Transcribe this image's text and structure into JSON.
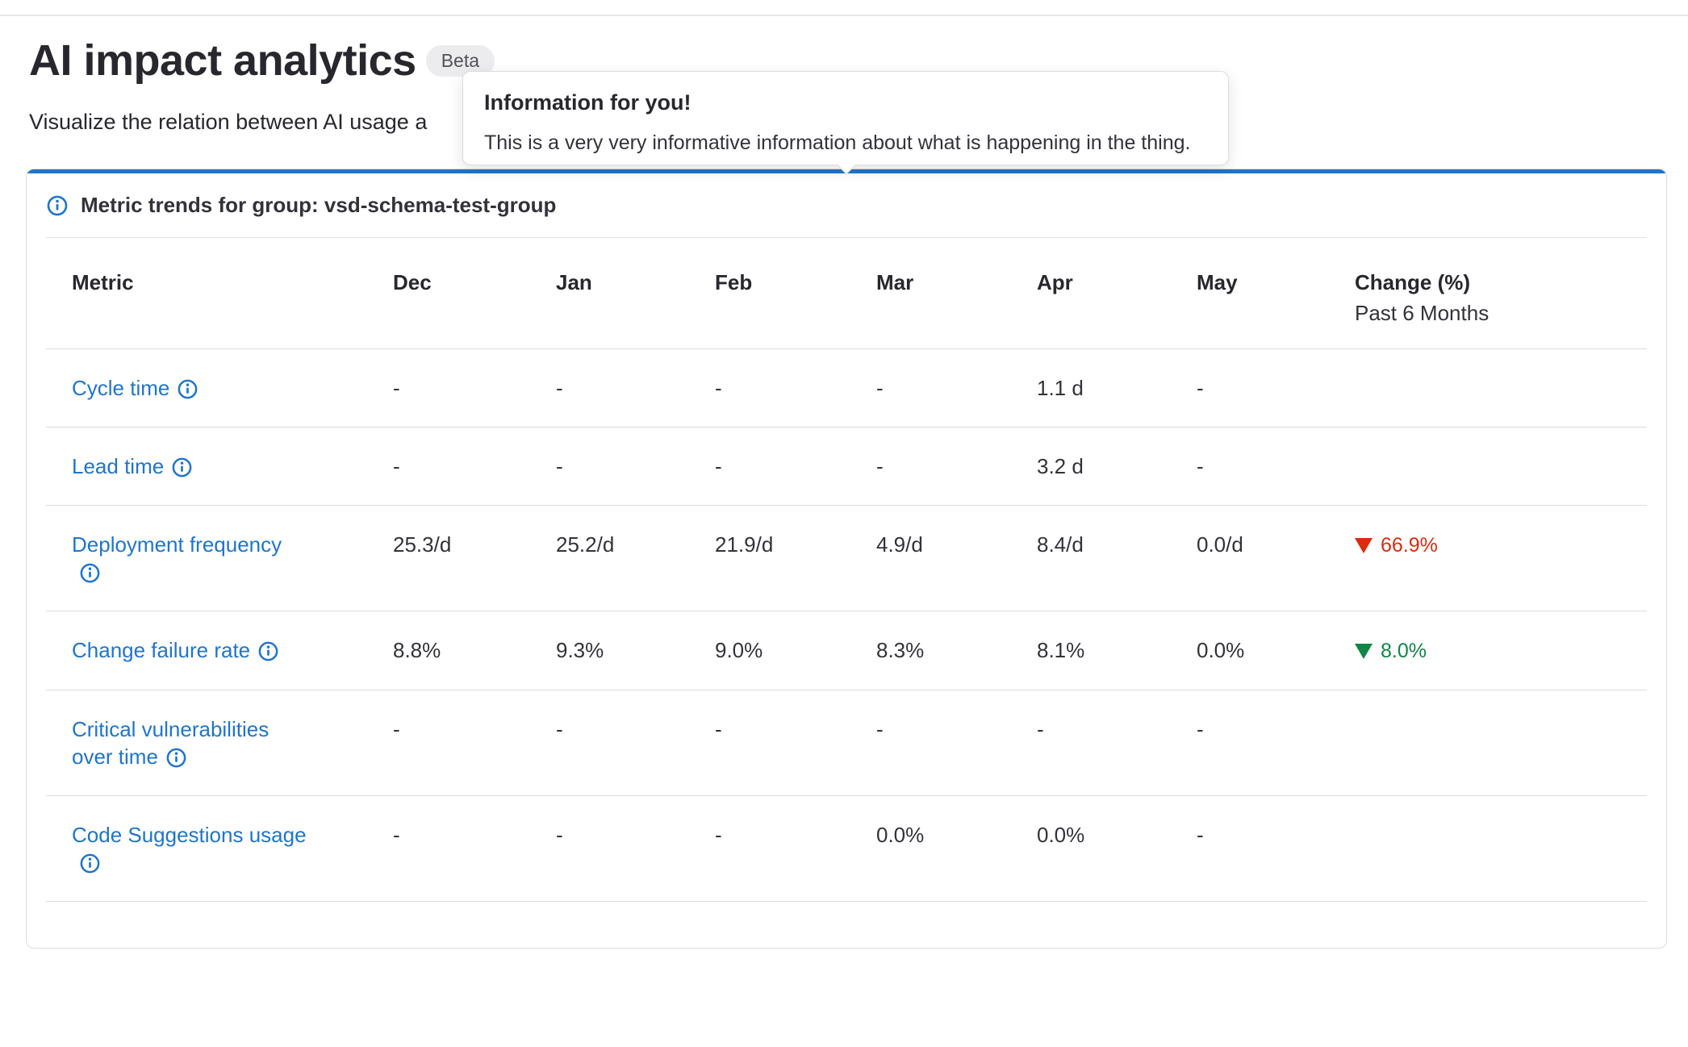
{
  "page": {
    "title": "AI impact analytics",
    "badge": "Beta",
    "subtitle": "Visualize the relation between AI usage a"
  },
  "tooltip": {
    "title": "Information for you!",
    "body": "This is a very very informative information about what is happening in the thing."
  },
  "panel": {
    "heading": "Metric trends for group: vsd-schema-test-group"
  },
  "table": {
    "columns": [
      "Metric",
      "Dec",
      "Jan",
      "Feb",
      "Mar",
      "Apr",
      "May"
    ],
    "change_column": {
      "line1": "Change (%)",
      "line2": "Past 6 Months"
    },
    "rows": [
      {
        "metric": "Cycle time",
        "label_lines": [
          "Cycle time"
        ],
        "icon_break": false,
        "values": [
          "-",
          "-",
          "-",
          "-",
          "1.1 d",
          "-"
        ],
        "change": null
      },
      {
        "metric": "Lead time",
        "label_lines": [
          "Lead time"
        ],
        "icon_break": false,
        "values": [
          "-",
          "-",
          "-",
          "-",
          "3.2 d",
          "-"
        ],
        "change": null
      },
      {
        "metric": "Deployment frequency",
        "label_lines": [
          "Deployment frequency"
        ],
        "icon_break": true,
        "values": [
          "25.3/d",
          "25.2/d",
          "21.9/d",
          "4.9/d",
          "8.4/d",
          "0.0/d"
        ],
        "change": {
          "icon": "triangle-down",
          "value": "66.9%",
          "color": "#dd2b0e"
        }
      },
      {
        "metric": "Change failure rate",
        "label_lines": [
          "Change failure rate"
        ],
        "icon_break": false,
        "values": [
          "8.8%",
          "9.3%",
          "9.0%",
          "8.3%",
          "8.1%",
          "0.0%"
        ],
        "change": {
          "icon": "triangle-down",
          "value": "8.0%",
          "color": "#108548"
        }
      },
      {
        "metric": "Critical vulnerabilities over time",
        "label_lines": [
          "Critical vulnerabilities",
          "over time"
        ],
        "icon_break": false,
        "values": [
          "-",
          "-",
          "-",
          "-",
          "-",
          "-"
        ],
        "change": null
      },
      {
        "metric": "Code Suggestions usage",
        "label_lines": [
          "Code Suggestions usage"
        ],
        "icon_break": true,
        "values": [
          "-",
          "-",
          "-",
          "0.0%",
          "0.0%",
          "-"
        ],
        "change": null
      }
    ]
  },
  "colors": {
    "accent_blue": "#1f75cb",
    "link_blue": "#1f75cb",
    "negative_red": "#dd2b0e",
    "positive_green": "#108548"
  }
}
